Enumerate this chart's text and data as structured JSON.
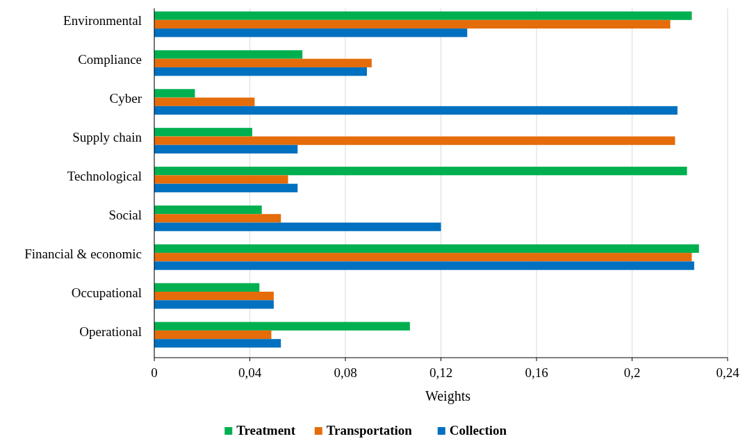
{
  "chart_data": {
    "type": "bar",
    "orientation": "horizontal",
    "xlabel": "Weights",
    "categories": [
      "Environmental",
      "Compliance",
      "Cyber",
      "Supply chain",
      "Technological",
      "Social",
      "Financial & economic",
      "Occupational",
      "Operational"
    ],
    "series": [
      {
        "name": "Treatment",
        "color": "#00b050",
        "values": [
          0.225,
          0.062,
          0.017,
          0.041,
          0.223,
          0.045,
          0.228,
          0.044,
          0.107
        ]
      },
      {
        "name": "Transportation",
        "color": "#e46c0a",
        "values": [
          0.216,
          0.091,
          0.042,
          0.218,
          0.056,
          0.053,
          0.225,
          0.05,
          0.049
        ]
      },
      {
        "name": "Collection",
        "color": "#0070c0",
        "values": [
          0.131,
          0.089,
          0.219,
          0.06,
          0.06,
          0.12,
          0.226,
          0.05,
          0.053
        ]
      }
    ],
    "xlim": [
      0,
      0.24
    ],
    "xticks": [
      0,
      {
        "value": 0.04,
        "label": "0,04"
      },
      {
        "value": 0.08,
        "label": "0,08"
      },
      {
        "value": 0.12,
        "label": "0,12"
      },
      {
        "value": 0.16,
        "label": "0,16"
      },
      {
        "value": 0.2,
        "label": "0,2"
      },
      {
        "value": 0.24,
        "label": "0,24"
      }
    ],
    "grid": "x",
    "legend": "bottom"
  }
}
